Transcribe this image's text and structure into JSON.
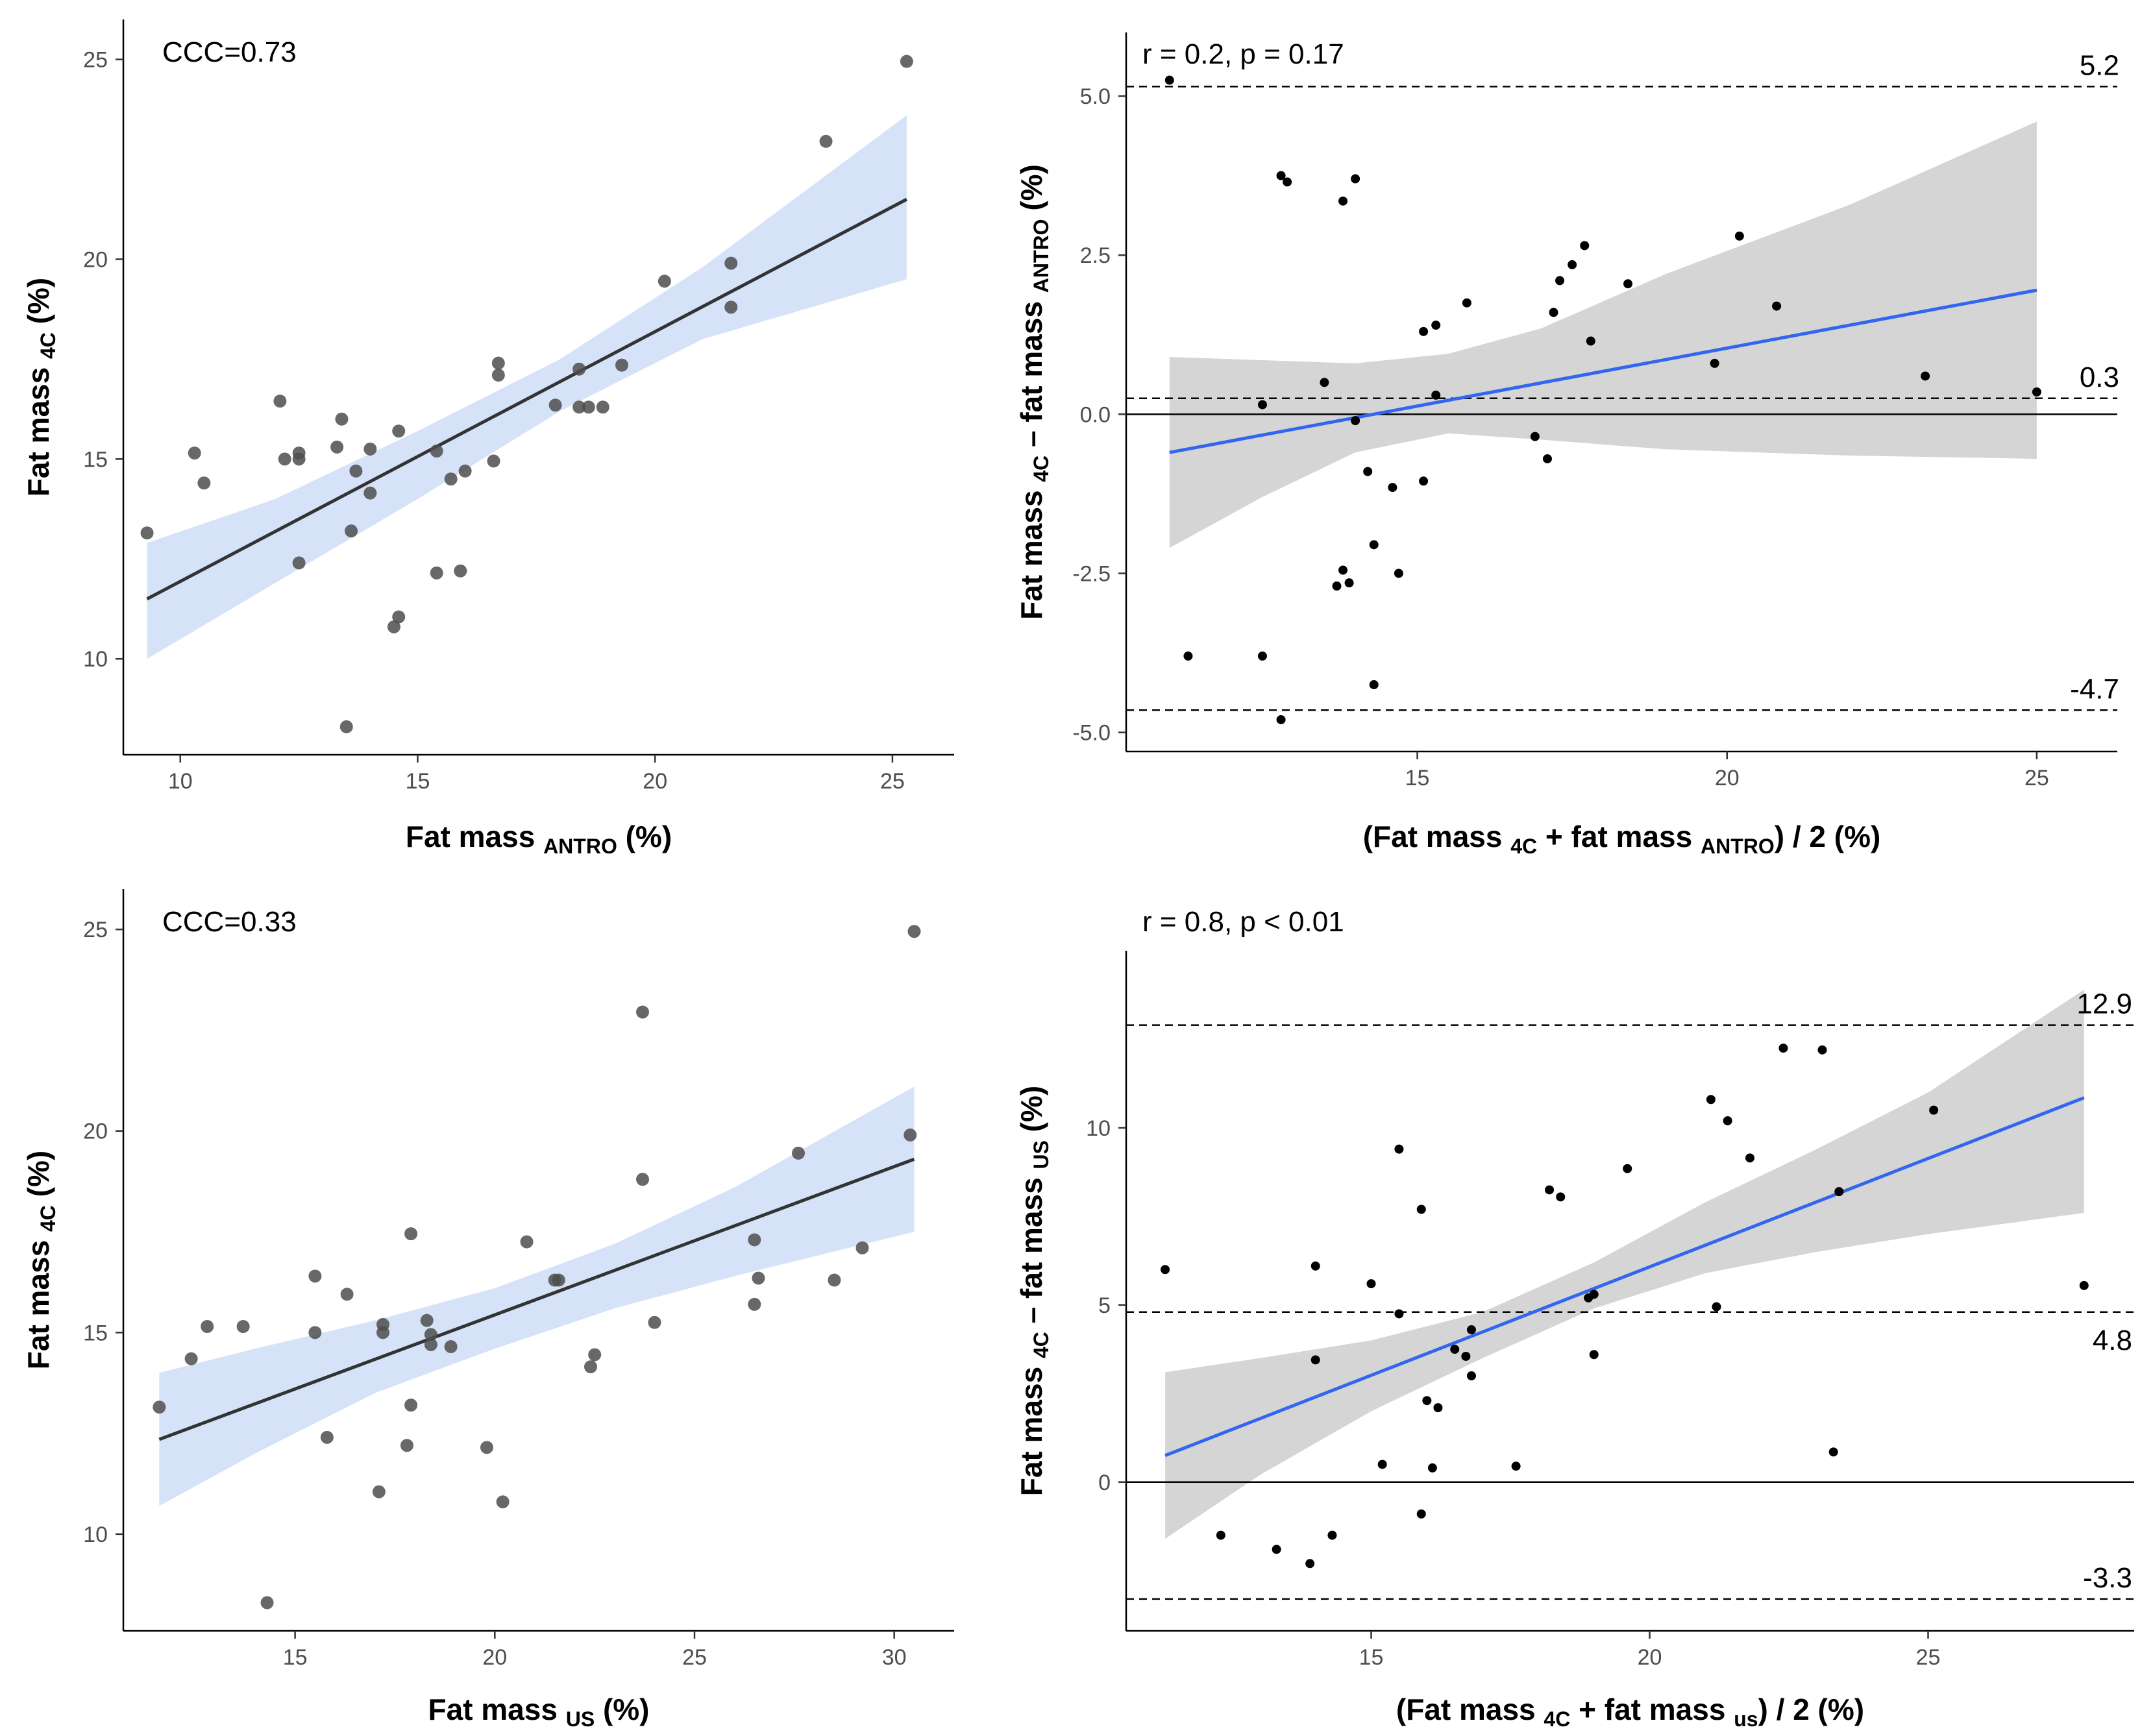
{
  "chart_data": [
    {
      "id": "p1",
      "type": "scatter",
      "annotation": "CCC=0.73",
      "xlabel": {
        "pre": "Fat mass ",
        "sub": "ANTRO",
        "post": " (%)"
      },
      "ylabel": {
        "pre": "Fat mass ",
        "sub": "4C",
        "post": " (%)"
      },
      "xlim": [
        8.8,
        26.3
      ],
      "ylim": [
        7.6,
        26.0
      ],
      "xticks": [
        10,
        15,
        20,
        25
      ],
      "yticks": [
        10,
        15,
        20,
        25
      ],
      "fit": {
        "x1": 9.3,
        "y1": 11.5,
        "x2": 25.3,
        "y2": 21.5,
        "color": "#333333"
      },
      "band": {
        "color": "#d6e2f8",
        "lower": [
          [
            9.3,
            10.0
          ],
          [
            12,
            11.9
          ],
          [
            15,
            14.0
          ],
          [
            18,
            16.2
          ],
          [
            21,
            18.0
          ],
          [
            25.3,
            19.5
          ]
        ],
        "upper": [
          [
            9.3,
            12.9
          ],
          [
            12,
            14.0
          ],
          [
            15,
            15.7
          ],
          [
            18,
            17.5
          ],
          [
            21,
            19.8
          ],
          [
            25.3,
            23.6
          ]
        ]
      },
      "points": [
        [
          9.3,
          13.15
        ],
        [
          10.3,
          15.15
        ],
        [
          10.5,
          14.4
        ],
        [
          12.1,
          16.45
        ],
        [
          12.2,
          15.0
        ],
        [
          12.5,
          15.15
        ],
        [
          12.5,
          15.0
        ],
        [
          12.5,
          12.4
        ],
        [
          13.3,
          15.3
        ],
        [
          13.4,
          16.0
        ],
        [
          13.5,
          8.3
        ],
        [
          13.6,
          13.2
        ],
        [
          13.7,
          14.7
        ],
        [
          14.0,
          14.15
        ],
        [
          14.0,
          15.25
        ],
        [
          14.5,
          10.8
        ],
        [
          14.6,
          15.7
        ],
        [
          14.6,
          11.05
        ],
        [
          15.4,
          15.2
        ],
        [
          15.4,
          12.15
        ],
        [
          15.7,
          14.5
        ],
        [
          15.9,
          12.2
        ],
        [
          16.0,
          14.7
        ],
        [
          16.6,
          14.95
        ],
        [
          16.7,
          17.4
        ],
        [
          16.7,
          17.1
        ],
        [
          17.9,
          16.35
        ],
        [
          18.4,
          17.25
        ],
        [
          18.4,
          16.3
        ],
        [
          18.6,
          16.3
        ],
        [
          18.9,
          16.3
        ],
        [
          19.3,
          17.35
        ],
        [
          20.2,
          19.45
        ],
        [
          21.6,
          19.9
        ],
        [
          21.6,
          18.8
        ],
        [
          23.6,
          22.95
        ],
        [
          25.3,
          24.95
        ]
      ],
      "point_color": "#4d4d4d"
    },
    {
      "id": "p2",
      "type": "scatter",
      "annotation": "r = 0.2, p = 0.17",
      "xlabel": {
        "pre": "(Fat mass ",
        "sub": "4C",
        "mid": " + fat mass ",
        "sub2": "ANTRO",
        "post": ") / 2 (%)"
      },
      "ylabel": {
        "pre": "Fat mass ",
        "sub": "4C",
        "mid": " – fat mass ",
        "sub2": "ANTRO",
        "post": " (%)"
      },
      "xlim": [
        10.3,
        26.3
      ],
      "ylim": [
        -5.3,
        6.0
      ],
      "xticks": [
        15,
        20,
        25
      ],
      "yticks": [
        -5.0,
        -2.5,
        0.0,
        2.5,
        5.0
      ],
      "ytick_labels": [
        "-5.0",
        "-2.5",
        "0.0",
        "2.5",
        "5.0"
      ],
      "zero_line": 0,
      "loa": [
        {
          "value": 5.15,
          "label": "5.2"
        },
        {
          "value": 0.25,
          "label": "0.3"
        },
        {
          "value": -4.65,
          "label": "-4.7"
        }
      ],
      "fit": {
        "x1": 11.0,
        "y1": -0.6,
        "x2": 25.0,
        "y2": 1.95,
        "color": "#3366ee"
      },
      "band": {
        "color": "#d5d5d5",
        "lower": [
          [
            11.0,
            -2.1
          ],
          [
            12.5,
            -1.3
          ],
          [
            14.0,
            -0.6
          ],
          [
            15.5,
            -0.3
          ],
          [
            17.0,
            -0.4
          ],
          [
            19.0,
            -0.55
          ],
          [
            22.0,
            -0.65
          ],
          [
            25.0,
            -0.7
          ]
        ],
        "upper": [
          [
            11.0,
            0.9
          ],
          [
            12.5,
            0.85
          ],
          [
            14.0,
            0.8
          ],
          [
            15.5,
            0.95
          ],
          [
            17.0,
            1.35
          ],
          [
            19.0,
            2.2
          ],
          [
            22.0,
            3.3
          ],
          [
            25.0,
            4.6
          ]
        ]
      },
      "points": [
        [
          11.0,
          5.25
        ],
        [
          11.3,
          -3.8
        ],
        [
          12.5,
          -3.8
        ],
        [
          12.5,
          0.15
        ],
        [
          12.8,
          3.75
        ],
        [
          12.8,
          -4.8
        ],
        [
          12.9,
          3.65
        ],
        [
          13.5,
          0.5
        ],
        [
          13.7,
          -2.7
        ],
        [
          13.8,
          -2.45
        ],
        [
          13.8,
          3.35
        ],
        [
          13.9,
          -2.65
        ],
        [
          14.0,
          3.7
        ],
        [
          14.0,
          -0.1
        ],
        [
          14.2,
          -0.9
        ],
        [
          14.3,
          -2.05
        ],
        [
          14.3,
          -4.25
        ],
        [
          14.6,
          -1.15
        ],
        [
          14.7,
          -2.5
        ],
        [
          15.1,
          1.3
        ],
        [
          15.1,
          -1.05
        ],
        [
          15.3,
          1.4
        ],
        [
          15.3,
          0.3
        ],
        [
          15.8,
          1.75
        ],
        [
          16.9,
          -0.35
        ],
        [
          17.1,
          -0.7
        ],
        [
          17.2,
          1.6
        ],
        [
          17.3,
          2.1
        ],
        [
          17.5,
          2.35
        ],
        [
          17.7,
          2.65
        ],
        [
          17.8,
          1.15
        ],
        [
          18.4,
          2.05
        ],
        [
          19.8,
          0.8
        ],
        [
          20.2,
          2.8
        ],
        [
          20.8,
          1.7
        ],
        [
          23.2,
          0.6
        ],
        [
          25.0,
          0.35
        ]
      ],
      "point_color": "#000000"
    },
    {
      "id": "p3",
      "type": "scatter",
      "annotation": "CCC=0.33",
      "xlabel": {
        "pre": "Fat mass ",
        "sub": "US",
        "post": " (%)"
      },
      "ylabel": {
        "pre": "Fat mass ",
        "sub": "4C",
        "post": " (%)"
      },
      "xlim": [
        10.7,
        31.5
      ],
      "ylim": [
        7.6,
        26.0
      ],
      "xticks": [
        15,
        20,
        25,
        30
      ],
      "yticks": [
        10,
        15,
        20,
        25
      ],
      "fit": {
        "x1": 11.6,
        "y1": 12.35,
        "x2": 30.5,
        "y2": 19.3,
        "color": "#333333"
      },
      "band": {
        "color": "#d6e2f8",
        "lower": [
          [
            11.6,
            10.7
          ],
          [
            14,
            12.0
          ],
          [
            17,
            13.5
          ],
          [
            20,
            14.6
          ],
          [
            23,
            15.6
          ],
          [
            26,
            16.4
          ],
          [
            30.5,
            17.5
          ]
        ],
        "upper": [
          [
            11.6,
            14.0
          ],
          [
            14,
            14.6
          ],
          [
            17,
            15.3
          ],
          [
            20,
            16.1
          ],
          [
            23,
            17.2
          ],
          [
            26,
            18.6
          ],
          [
            30.5,
            21.1
          ]
        ]
      },
      "points": [
        [
          11.6,
          13.15
        ],
        [
          12.4,
          14.35
        ],
        [
          12.8,
          15.15
        ],
        [
          13.7,
          15.15
        ],
        [
          14.3,
          8.3
        ],
        [
          15.5,
          16.4
        ],
        [
          15.5,
          15.0
        ],
        [
          15.8,
          12.4
        ],
        [
          16.3,
          15.95
        ],
        [
          17.1,
          11.05
        ],
        [
          17.2,
          15.2
        ],
        [
          17.2,
          15.0
        ],
        [
          17.8,
          12.2
        ],
        [
          17.9,
          13.2
        ],
        [
          17.9,
          17.45
        ],
        [
          18.3,
          15.3
        ],
        [
          18.4,
          14.95
        ],
        [
          18.4,
          14.7
        ],
        [
          18.9,
          14.65
        ],
        [
          19.8,
          12.15
        ],
        [
          20.2,
          10.8
        ],
        [
          20.8,
          17.25
        ],
        [
          21.5,
          16.3
        ],
        [
          21.6,
          16.3
        ],
        [
          22.4,
          14.15
        ],
        [
          22.5,
          14.45
        ],
        [
          23.7,
          22.95
        ],
        [
          23.7,
          18.8
        ],
        [
          24.0,
          15.25
        ],
        [
          26.5,
          17.3
        ],
        [
          26.5,
          15.7
        ],
        [
          26.6,
          16.35
        ],
        [
          27.6,
          19.45
        ],
        [
          28.5,
          16.3
        ],
        [
          29.2,
          17.1
        ],
        [
          30.4,
          19.9
        ],
        [
          30.5,
          24.95
        ]
      ],
      "point_color": "#4d4d4d"
    },
    {
      "id": "p4",
      "type": "scatter",
      "annotation": "r = 0.8, p < 0.01",
      "xlabel": {
        "pre": "(Fat mass ",
        "sub": "4C",
        "mid": " + fat mass ",
        "sub2": "us",
        "post": ") / 2 (%)"
      },
      "ylabel": {
        "pre": "Fat mass ",
        "sub": "4C",
        "mid": " – fat mass ",
        "sub2": "US",
        "post": " (%)"
      },
      "xlim": [
        10.6,
        28.7
      ],
      "ylim": [
        -4.2,
        15.0
      ],
      "xticks": [
        15,
        20,
        25
      ],
      "yticks": [
        0,
        5,
        10
      ],
      "ytick_labels": [
        "0",
        "5",
        "10"
      ],
      "zero_line": 0,
      "loa": [
        {
          "value": 12.9,
          "label": "12.9"
        },
        {
          "value": 4.8,
          "label": "4.8"
        },
        {
          "value": -3.3,
          "label": "-3.3"
        }
      ],
      "fit": {
        "x1": 11.3,
        "y1": 0.75,
        "x2": 27.8,
        "y2": 10.85,
        "color": "#3366ee"
      },
      "band": {
        "color": "#d5d5d5",
        "lower": [
          [
            11.3,
            -1.6
          ],
          [
            13,
            0.2
          ],
          [
            15,
            2.0
          ],
          [
            17,
            3.5
          ],
          [
            19,
            4.9
          ],
          [
            21,
            5.9
          ],
          [
            23,
            6.5
          ],
          [
            25,
            7.0
          ],
          [
            27.8,
            7.6
          ]
        ],
        "upper": [
          [
            11.3,
            3.1
          ],
          [
            13,
            3.5
          ],
          [
            15,
            4.0
          ],
          [
            17,
            4.8
          ],
          [
            19,
            6.2
          ],
          [
            21,
            7.9
          ],
          [
            23,
            9.4
          ],
          [
            25,
            11.0
          ],
          [
            27.8,
            13.9
          ]
        ]
      },
      "points": [
        [
          11.3,
          6.0
        ],
        [
          12.3,
          -1.5
        ],
        [
          13.3,
          -1.9
        ],
        [
          13.9,
          -2.3
        ],
        [
          14.0,
          6.1
        ],
        [
          14.0,
          3.45
        ],
        [
          14.3,
          -1.5
        ],
        [
          15.0,
          5.6
        ],
        [
          15.2,
          0.5
        ],
        [
          15.5,
          9.4
        ],
        [
          15.5,
          4.75
        ],
        [
          15.9,
          7.7
        ],
        [
          15.9,
          -0.9
        ],
        [
          16.0,
          2.3
        ],
        [
          16.1,
          0.4
        ],
        [
          16.2,
          2.1
        ],
        [
          16.5,
          3.75
        ],
        [
          16.7,
          3.55
        ],
        [
          16.8,
          4.3
        ],
        [
          16.8,
          3.0
        ],
        [
          17.6,
          0.45
        ],
        [
          18.2,
          8.25
        ],
        [
          18.4,
          8.05
        ],
        [
          18.9,
          5.2
        ],
        [
          19.0,
          5.3
        ],
        [
          19.0,
          3.6
        ],
        [
          19.6,
          8.85
        ],
        [
          21.1,
          10.8
        ],
        [
          21.2,
          4.95
        ],
        [
          21.4,
          10.2
        ],
        [
          21.8,
          9.15
        ],
        [
          22.4,
          12.25
        ],
        [
          23.1,
          12.2
        ],
        [
          23.3,
          0.85
        ],
        [
          23.4,
          8.2
        ],
        [
          25.1,
          10.5
        ],
        [
          27.8,
          5.55
        ]
      ],
      "point_color": "#000000"
    }
  ]
}
